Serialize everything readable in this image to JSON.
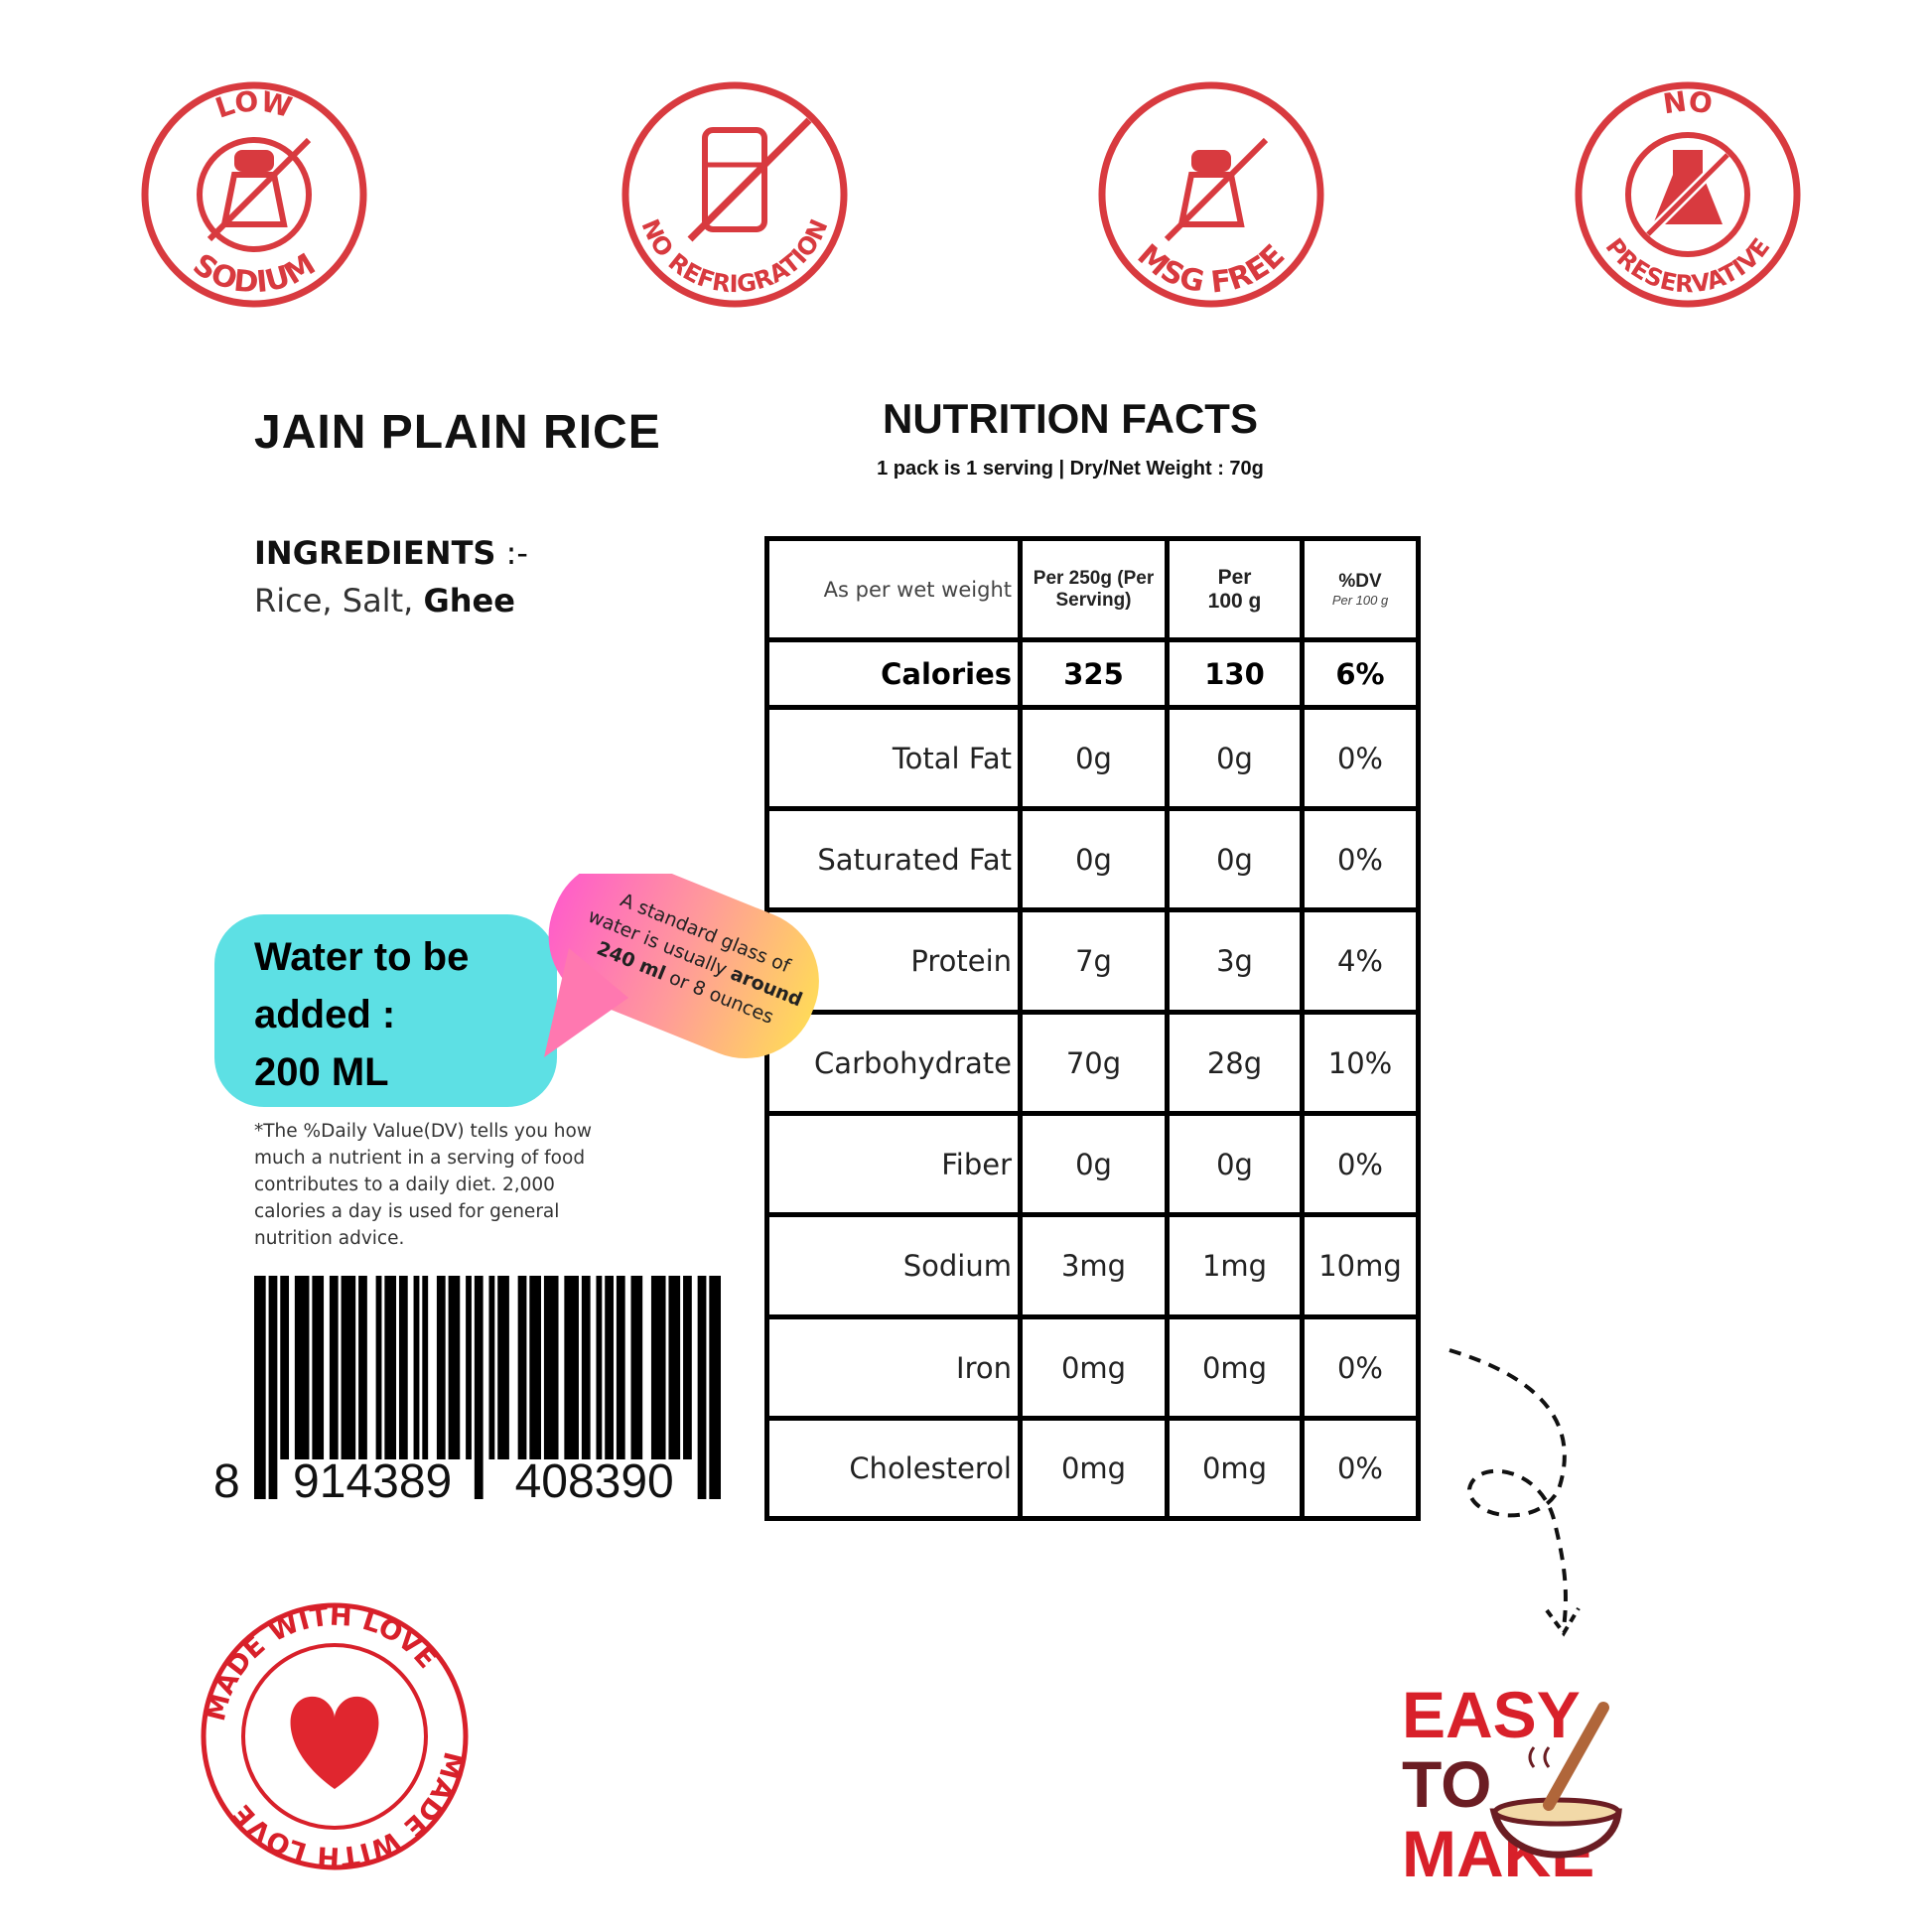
{
  "badges": [
    {
      "top": "LOW",
      "bottom": "SODIUM",
      "icon": "salt-shaker-crossed-icon"
    },
    {
      "top": "",
      "bottom": "NO REFRIGRATION",
      "icon": "fridge-crossed-icon"
    },
    {
      "top": "",
      "bottom": "MSG FREE",
      "icon": "salt-shaker-crossed-icon"
    },
    {
      "top": "NO",
      "bottom": "PRESERVATIVE",
      "icon": "flask-crossed-icon"
    }
  ],
  "brand_color": "#d83a3f",
  "product": {
    "title": "JAIN PLAIN RICE"
  },
  "ingredients": {
    "label": "INGREDIENTS",
    "sep": " :-",
    "items_plain": "Rice,  Salt, ",
    "items_bold": "Ghee"
  },
  "nutrition": {
    "title": "NUTRITION FACTS",
    "subtitle": "1 pack is 1 serving | Dry/Net  Weight : 70g",
    "header": {
      "label": "As per wet weight",
      "col1": "Per 250g (Per Serving)",
      "col2a": "Per",
      "col2b": "100 g",
      "col3": "%DV",
      "col3_sub": "Per 100 g"
    },
    "rows": [
      {
        "name": "Calories",
        "serving": "325",
        "per100": "130",
        "dv": "6%"
      },
      {
        "name": "Total Fat",
        "serving": "0g",
        "per100": "0g",
        "dv": "0%"
      },
      {
        "name": "Saturated Fat",
        "serving": "0g",
        "per100": "0g",
        "dv": "0%"
      },
      {
        "name": "Protein",
        "serving": "7g",
        "per100": "3g",
        "dv": "4%"
      },
      {
        "name": "Carbohydrate",
        "serving": "70g",
        "per100": "28g",
        "dv": "10%"
      },
      {
        "name": "Fiber",
        "serving": "0g",
        "per100": "0g",
        "dv": "0%"
      },
      {
        "name": "Sodium",
        "serving": "3mg",
        "per100": "1mg",
        "dv": "10mg"
      },
      {
        "name": "Iron",
        "serving": "0mg",
        "per100": "0mg",
        "dv": "0%"
      },
      {
        "name": "Cholesterol",
        "serving": "0mg",
        "per100": "0mg",
        "dv": "0%"
      }
    ]
  },
  "water": {
    "line1": "Water to be",
    "line2": "added :",
    "line3": "200 ML"
  },
  "tip": {
    "t1": "A standard glass of water is usually ",
    "t2": "around",
    "t3": "240 ml",
    "t4": " or 8 ounces"
  },
  "footnote": "*The %Daily Value(DV) tells you how much a nutrient in a serving of food contributes to a daily diet. 2,000 calories a day is used for general nutrition advice.",
  "barcode": {
    "d1": "8",
    "d2": "914389",
    "d3": "408390"
  },
  "stamp": {
    "text": "MADE WITH LOVE"
  },
  "easy": {
    "l1": "EASY",
    "l2": "TO",
    "l3": "MAKE"
  }
}
